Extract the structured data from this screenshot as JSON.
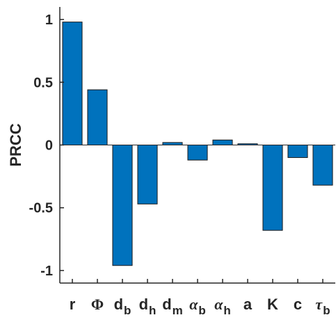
{
  "chart_data": {
    "type": "bar",
    "title": "",
    "xlabel": "",
    "ylabel": "PRCC",
    "ylim": [
      -1.1,
      1.1
    ],
    "yticks": [
      {
        "value": 1,
        "label": "1"
      },
      {
        "value": 0.5,
        "label": "0.5"
      },
      {
        "value": 0,
        "label": "0"
      },
      {
        "value": -0.5,
        "label": "-0.5"
      },
      {
        "value": -1,
        "label": "-1"
      }
    ],
    "categories": [
      {
        "main": "r",
        "sub": "",
        "style": "plain"
      },
      {
        "main": "Φ",
        "sub": "",
        "style": "greek"
      },
      {
        "main": "d",
        "sub": "b",
        "style": "plain"
      },
      {
        "main": "d",
        "sub": "h",
        "style": "plain"
      },
      {
        "main": "d",
        "sub": "m",
        "style": "plain"
      },
      {
        "main": "α",
        "sub": "b",
        "style": "greek-italic"
      },
      {
        "main": "α",
        "sub": "h",
        "style": "greek-italic"
      },
      {
        "main": "a",
        "sub": "",
        "style": "plain"
      },
      {
        "main": "K",
        "sub": "",
        "style": "plain"
      },
      {
        "main": "c",
        "sub": "",
        "style": "plain"
      },
      {
        "main": "τ",
        "sub": "b",
        "style": "greek-italic"
      }
    ],
    "values": [
      0.98,
      0.44,
      -0.96,
      -0.47,
      0.02,
      -0.12,
      0.04,
      0.01,
      -0.68,
      -0.1,
      -0.32
    ],
    "bar_color": "#0072BD",
    "bar_edge_color": "#1a1a1a",
    "grid": false,
    "box": false
  }
}
